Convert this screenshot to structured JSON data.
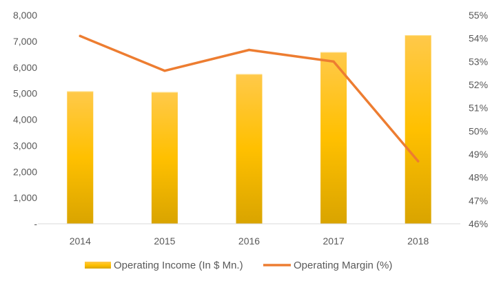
{
  "chart_data": {
    "type": "bar",
    "categories": [
      "2014",
      "2015",
      "2016",
      "2017",
      "2018"
    ],
    "series": [
      {
        "name": "Operating Income (In $ Mn.)",
        "type": "bar",
        "axis": "left",
        "values": [
          5080,
          5050,
          5740,
          6580,
          7230
        ]
      },
      {
        "name": "Operating Margin (%)",
        "type": "line",
        "axis": "right",
        "values": [
          54.1,
          52.6,
          53.5,
          53.0,
          48.7
        ]
      }
    ],
    "y_left": {
      "ylim": [
        0,
        8000
      ],
      "ticks": [
        0,
        1000,
        2000,
        3000,
        4000,
        5000,
        6000,
        7000,
        8000
      ],
      "tick_labels": [
        "-",
        "1,000",
        "2,000",
        "3,000",
        "4,000",
        "5,000",
        "6,000",
        "7,000",
        "8,000"
      ]
    },
    "y_right": {
      "ylim": [
        46,
        55
      ],
      "ticks": [
        46,
        47,
        48,
        49,
        50,
        51,
        52,
        53,
        54,
        55
      ],
      "tick_labels": [
        "46%",
        "47%",
        "48%",
        "49%",
        "50%",
        "51%",
        "52%",
        "53%",
        "54%",
        "55%"
      ]
    },
    "grid": false,
    "legend_position": "bottom",
    "colors": {
      "bar_top": "#ffc94a",
      "bar_mid": "#ffc000",
      "bar_bottom": "#d9a400",
      "line": "#ed7d31",
      "axis_text": "#595959",
      "baseline": "#d9d9d9"
    }
  }
}
